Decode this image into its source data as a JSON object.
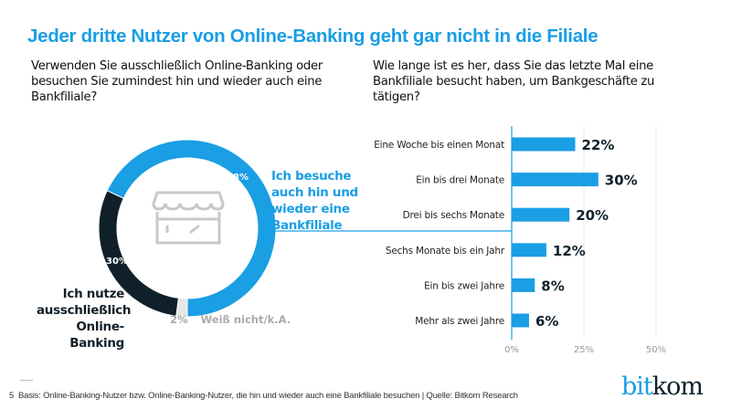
{
  "title": "Jeder dritte Nutzer von Online-Banking geht gar nicht in die Filiale",
  "question_left": "Verwenden Sie ausschließlich Online-Banking oder besuchen Sie zumindest hin und wieder auch eine Bankfiliale?",
  "question_right": "Wie lange ist es her, dass Sie das letzte Mal eine Bankfiliale besucht haben, um Bankgeschäfte zu tätigen?",
  "colors": {
    "accent": "#1a9ee4",
    "dark": "#10202a",
    "gray": "#e6e6e6"
  },
  "chart_data": [
    {
      "type": "pie",
      "variant": "donut",
      "center_icon": "storefront-icon",
      "slices": [
        {
          "name": "Ich besuche auch hin und wieder eine Bankfiliale",
          "value": 68,
          "label": "68%",
          "color": "#1a9ee4"
        },
        {
          "name": "Ich nutze ausschließlich Online-Banking",
          "value": 30,
          "label": "30%",
          "color": "#10202a"
        },
        {
          "name": "Weiß nicht/k.A.",
          "value": 2,
          "label": "2%",
          "color": "#e6e6e6"
        }
      ]
    },
    {
      "type": "bar",
      "orientation": "horizontal",
      "categories": [
        "Eine Woche bis einen Monat",
        "Ein bis drei Monate",
        "Drei bis sechs Monate",
        "Sechs Monate bis ein Jahr",
        "Ein bis zwei Jahre",
        "Mehr als zwei Jahre"
      ],
      "values": [
        22,
        30,
        20,
        12,
        8,
        6
      ],
      "value_labels": [
        "22%",
        "30%",
        "20%",
        "12%",
        "8%",
        "6%"
      ],
      "xlim": [
        0,
        50
      ],
      "ticks": [
        "0%",
        "25%",
        "50%"
      ],
      "tick_values": [
        0,
        25,
        50
      ],
      "grid": true,
      "color": "#1a9ee4"
    }
  ],
  "footer": {
    "page": "5",
    "note": "Basis: Online-Banking-Nutzer bzw. Online-Banking-Nutzer, die hin und wieder auch eine Bankfiliale besuchen | Quelle: Bitkom Research"
  },
  "logo": {
    "part1": "bit",
    "part2": "kom"
  }
}
